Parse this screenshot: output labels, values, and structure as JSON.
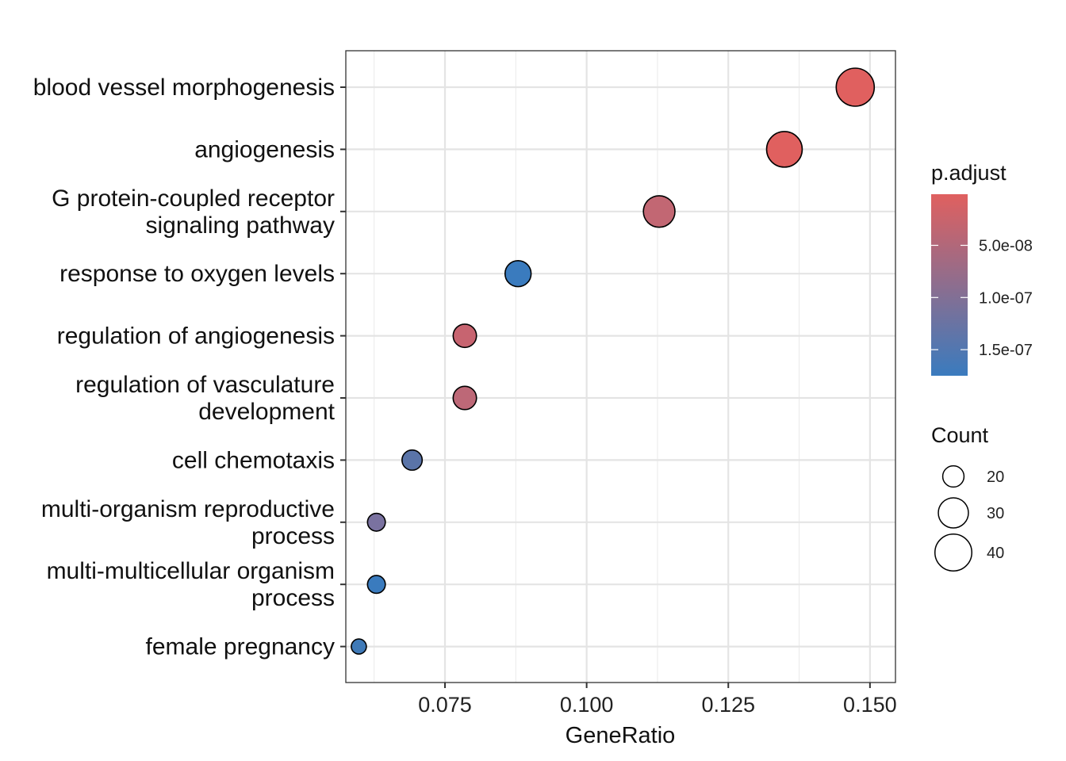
{
  "chart_data": {
    "type": "scatter",
    "xlabel": "GeneRatio",
    "ylabel": "",
    "xlim": [
      0.0575,
      0.1545
    ],
    "x_ticks": [
      0.075,
      0.1,
      0.125,
      0.15
    ],
    "x_tick_labels": [
      "0.075",
      "0.100",
      "0.125",
      "0.150"
    ],
    "grid": true,
    "categories": [
      {
        "label": "blood vessel morphogenesis",
        "lines": [
          "blood vessel morphogenesis"
        ]
      },
      {
        "label": "angiogenesis",
        "lines": [
          "angiogenesis"
        ]
      },
      {
        "label": "G protein-coupled receptor signaling pathway",
        "lines": [
          "G protein-coupled receptor",
          "signaling pathway"
        ]
      },
      {
        "label": "response to oxygen levels",
        "lines": [
          "response to oxygen levels"
        ]
      },
      {
        "label": "regulation of angiogenesis",
        "lines": [
          "regulation of angiogenesis"
        ]
      },
      {
        "label": "regulation of vasculature development",
        "lines": [
          "regulation of vasculature",
          "development"
        ]
      },
      {
        "label": "cell chemotaxis",
        "lines": [
          "cell chemotaxis"
        ]
      },
      {
        "label": "multi-organism reproductive process",
        "lines": [
          "multi-organism reproductive",
          "process"
        ]
      },
      {
        "label": "multi-multicellular organism process",
        "lines": [
          "multi-multicellular organism",
          "process"
        ]
      },
      {
        "label": "female pregnancy",
        "lines": [
          "female pregnancy"
        ]
      }
    ],
    "points": [
      {
        "category": "blood vessel morphogenesis",
        "gene_ratio": 0.1474,
        "count": 42,
        "p_adjust": 1e-09,
        "color": "#E0605F"
      },
      {
        "category": "angiogenesis",
        "gene_ratio": 0.1349,
        "count": 38,
        "p_adjust": 2e-09,
        "color": "#E0605F"
      },
      {
        "category": "G protein-coupled receptor signaling pathway",
        "gene_ratio": 0.1128,
        "count": 32,
        "p_adjust": 4.5e-08,
        "color": "#C26773"
      },
      {
        "category": "response to oxygen levels",
        "gene_ratio": 0.0879,
        "count": 25,
        "p_adjust": 1.7e-07,
        "color": "#3A7BBE"
      },
      {
        "category": "regulation of angiogenesis",
        "gene_ratio": 0.0785,
        "count": 22,
        "p_adjust": 3.5e-08,
        "color": "#C76470"
      },
      {
        "category": "regulation of vasculature development",
        "gene_ratio": 0.0785,
        "count": 22,
        "p_adjust": 5.5e-08,
        "color": "#BD6877"
      },
      {
        "category": "cell chemotaxis",
        "gene_ratio": 0.0692,
        "count": 19,
        "p_adjust": 1.45e-07,
        "color": "#5A74A8"
      },
      {
        "category": "multi-organism reproductive process",
        "gene_ratio": 0.0629,
        "count": 17,
        "p_adjust": 1.2e-07,
        "color": "#7A72A0"
      },
      {
        "category": "multi-multicellular organism process",
        "gene_ratio": 0.0629,
        "count": 17,
        "p_adjust": 1.7e-07,
        "color": "#3A7BBE"
      },
      {
        "category": "female pregnancy",
        "gene_ratio": 0.0598,
        "count": 15,
        "p_adjust": 1.65e-07,
        "color": "#3F7AB8"
      }
    ],
    "legend_color": {
      "title": "p.adjust",
      "position": "right",
      "low_color": "#E0605F",
      "high_color": "#3A7BBE",
      "range": [
        1e-09,
        1.75e-07
      ],
      "ticks": [
        5e-08,
        1e-07,
        1.5e-07
      ],
      "tick_labels": [
        "5.0e-08",
        "1.0e-07",
        "1.5e-07"
      ]
    },
    "legend_size": {
      "title": "Count",
      "position": "right",
      "values": [
        20,
        30,
        40
      ],
      "labels": [
        "20",
        "30",
        "40"
      ],
      "count_range": [
        15,
        42
      ]
    }
  }
}
